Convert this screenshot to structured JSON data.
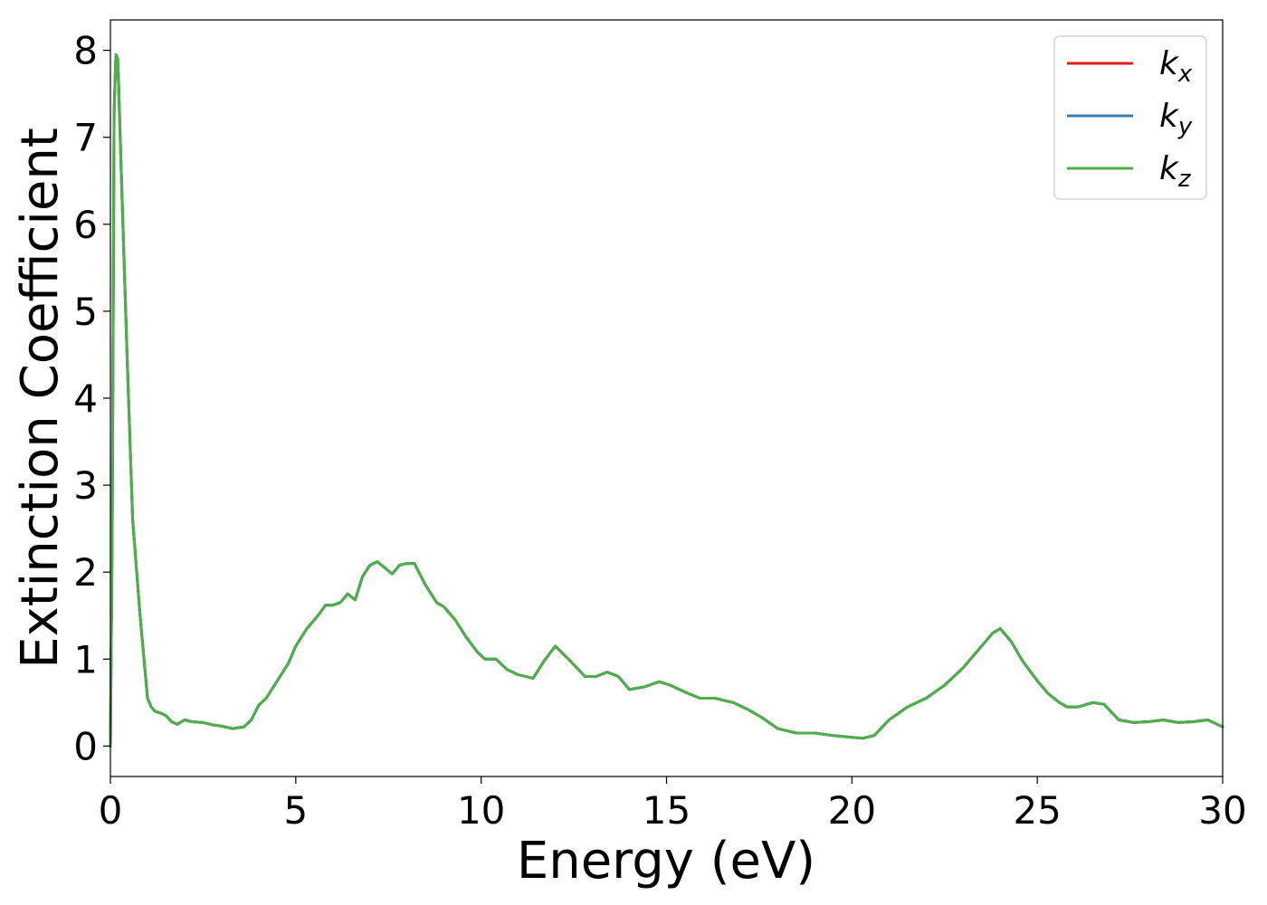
{
  "chart_data": {
    "type": "line",
    "title": "",
    "xlabel": "Energy (eV)",
    "ylabel": "Extinction Coefficient",
    "xlim": [
      0,
      30
    ],
    "ylim": [
      -0.35,
      8.35
    ],
    "xticks": [
      0,
      5,
      10,
      15,
      20,
      25,
      30
    ],
    "xtick_labels": [
      "0",
      "5",
      "10",
      "15",
      "20",
      "25",
      "30"
    ],
    "yticks": [
      0,
      1,
      2,
      3,
      4,
      5,
      6,
      7,
      8
    ],
    "ytick_labels": [
      "0",
      "1",
      "2",
      "3",
      "4",
      "5",
      "6",
      "7",
      "8"
    ],
    "grid": false,
    "legend_position": "top-right",
    "x": [
      0,
      0.05,
      0.1,
      0.15,
      0.2,
      0.3,
      0.45,
      0.6,
      0.8,
      1.0,
      1.1,
      1.2,
      1.35,
      1.5,
      1.65,
      1.8,
      2.0,
      2.2,
      2.5,
      2.8,
      3.0,
      3.3,
      3.6,
      3.8,
      4.0,
      4.2,
      4.5,
      4.8,
      5.0,
      5.3,
      5.6,
      5.8,
      6.0,
      6.2,
      6.4,
      6.6,
      6.8,
      7.0,
      7.2,
      7.4,
      7.6,
      7.8,
      8.0,
      8.2,
      8.5,
      8.8,
      9.0,
      9.3,
      9.6,
      9.9,
      10.1,
      10.4,
      10.7,
      11.0,
      11.4,
      11.7,
      12.0,
      12.4,
      12.8,
      13.1,
      13.4,
      13.7,
      14.0,
      14.4,
      14.8,
      15.1,
      15.5,
      15.9,
      16.3,
      16.8,
      17.2,
      17.6,
      18.0,
      18.5,
      19.0,
      19.5,
      20.0,
      20.3,
      20.6,
      21.0,
      21.5,
      22.0,
      22.5,
      23.0,
      23.4,
      23.8,
      24.0,
      24.3,
      24.6,
      25.0,
      25.3,
      25.6,
      25.8,
      26.1,
      26.5,
      26.8,
      27.2,
      27.6,
      28.0,
      28.4,
      28.8,
      29.2,
      29.6,
      30.0
    ],
    "series": [
      {
        "name": "k_x",
        "color": "#e41a1c",
        "values": [
          0.0,
          2.5,
          7.3,
          7.95,
          7.9,
          6.5,
          4.5,
          2.6,
          1.5,
          0.55,
          0.45,
          0.4,
          0.38,
          0.35,
          0.28,
          0.25,
          0.3,
          0.28,
          0.27,
          0.24,
          0.23,
          0.2,
          0.22,
          0.3,
          0.47,
          0.55,
          0.75,
          0.95,
          1.15,
          1.35,
          1.5,
          1.62,
          1.62,
          1.65,
          1.75,
          1.68,
          1.95,
          2.08,
          2.12,
          2.05,
          1.98,
          2.08,
          2.1,
          2.1,
          1.85,
          1.65,
          1.6,
          1.45,
          1.25,
          1.08,
          1.0,
          1.0,
          0.88,
          0.82,
          0.78,
          0.98,
          1.15,
          0.98,
          0.8,
          0.8,
          0.85,
          0.8,
          0.65,
          0.68,
          0.74,
          0.7,
          0.62,
          0.55,
          0.55,
          0.5,
          0.42,
          0.32,
          0.2,
          0.15,
          0.15,
          0.12,
          0.1,
          0.09,
          0.12,
          0.3,
          0.45,
          0.55,
          0.7,
          0.9,
          1.1,
          1.3,
          1.35,
          1.2,
          0.98,
          0.75,
          0.6,
          0.5,
          0.45,
          0.45,
          0.5,
          0.48,
          0.3,
          0.27,
          0.28,
          0.3,
          0.27,
          0.28,
          0.3,
          0.22
        ]
      },
      {
        "name": "k_y",
        "color": "#377eb8",
        "values": [
          0.0,
          2.5,
          7.3,
          7.95,
          7.9,
          6.5,
          4.5,
          2.6,
          1.5,
          0.55,
          0.45,
          0.4,
          0.38,
          0.35,
          0.28,
          0.25,
          0.3,
          0.28,
          0.27,
          0.24,
          0.23,
          0.2,
          0.22,
          0.3,
          0.47,
          0.55,
          0.75,
          0.95,
          1.15,
          1.35,
          1.5,
          1.62,
          1.62,
          1.65,
          1.75,
          1.68,
          1.95,
          2.08,
          2.12,
          2.05,
          1.98,
          2.08,
          2.1,
          2.1,
          1.85,
          1.65,
          1.6,
          1.45,
          1.25,
          1.08,
          1.0,
          1.0,
          0.88,
          0.82,
          0.78,
          0.98,
          1.15,
          0.98,
          0.8,
          0.8,
          0.85,
          0.8,
          0.65,
          0.68,
          0.74,
          0.7,
          0.62,
          0.55,
          0.55,
          0.5,
          0.42,
          0.32,
          0.2,
          0.15,
          0.15,
          0.12,
          0.1,
          0.09,
          0.12,
          0.3,
          0.45,
          0.55,
          0.7,
          0.9,
          1.1,
          1.3,
          1.35,
          1.2,
          0.98,
          0.75,
          0.6,
          0.5,
          0.45,
          0.45,
          0.5,
          0.48,
          0.3,
          0.27,
          0.28,
          0.3,
          0.27,
          0.28,
          0.3,
          0.22
        ]
      },
      {
        "name": "k_z",
        "color": "#4daf4a",
        "values": [
          0.0,
          2.5,
          7.3,
          7.95,
          7.9,
          6.5,
          4.5,
          2.6,
          1.5,
          0.55,
          0.45,
          0.4,
          0.38,
          0.35,
          0.28,
          0.25,
          0.3,
          0.28,
          0.27,
          0.24,
          0.23,
          0.2,
          0.22,
          0.3,
          0.47,
          0.55,
          0.75,
          0.95,
          1.15,
          1.35,
          1.5,
          1.62,
          1.62,
          1.65,
          1.75,
          1.68,
          1.95,
          2.08,
          2.12,
          2.05,
          1.98,
          2.08,
          2.1,
          2.1,
          1.85,
          1.65,
          1.6,
          1.45,
          1.25,
          1.08,
          1.0,
          1.0,
          0.88,
          0.82,
          0.78,
          0.98,
          1.15,
          0.98,
          0.8,
          0.8,
          0.85,
          0.8,
          0.65,
          0.68,
          0.74,
          0.7,
          0.62,
          0.55,
          0.55,
          0.5,
          0.42,
          0.32,
          0.2,
          0.15,
          0.15,
          0.12,
          0.1,
          0.09,
          0.12,
          0.3,
          0.45,
          0.55,
          0.7,
          0.9,
          1.1,
          1.3,
          1.35,
          1.2,
          0.98,
          0.75,
          0.6,
          0.5,
          0.45,
          0.45,
          0.5,
          0.48,
          0.3,
          0.27,
          0.28,
          0.3,
          0.27,
          0.28,
          0.3,
          0.22
        ]
      }
    ],
    "legend": [
      {
        "base": "k",
        "sub": "x",
        "color": "#e41a1c"
      },
      {
        "base": "k",
        "sub": "y",
        "color": "#377eb8"
      },
      {
        "base": "k",
        "sub": "z",
        "color": "#4daf4a"
      }
    ]
  }
}
